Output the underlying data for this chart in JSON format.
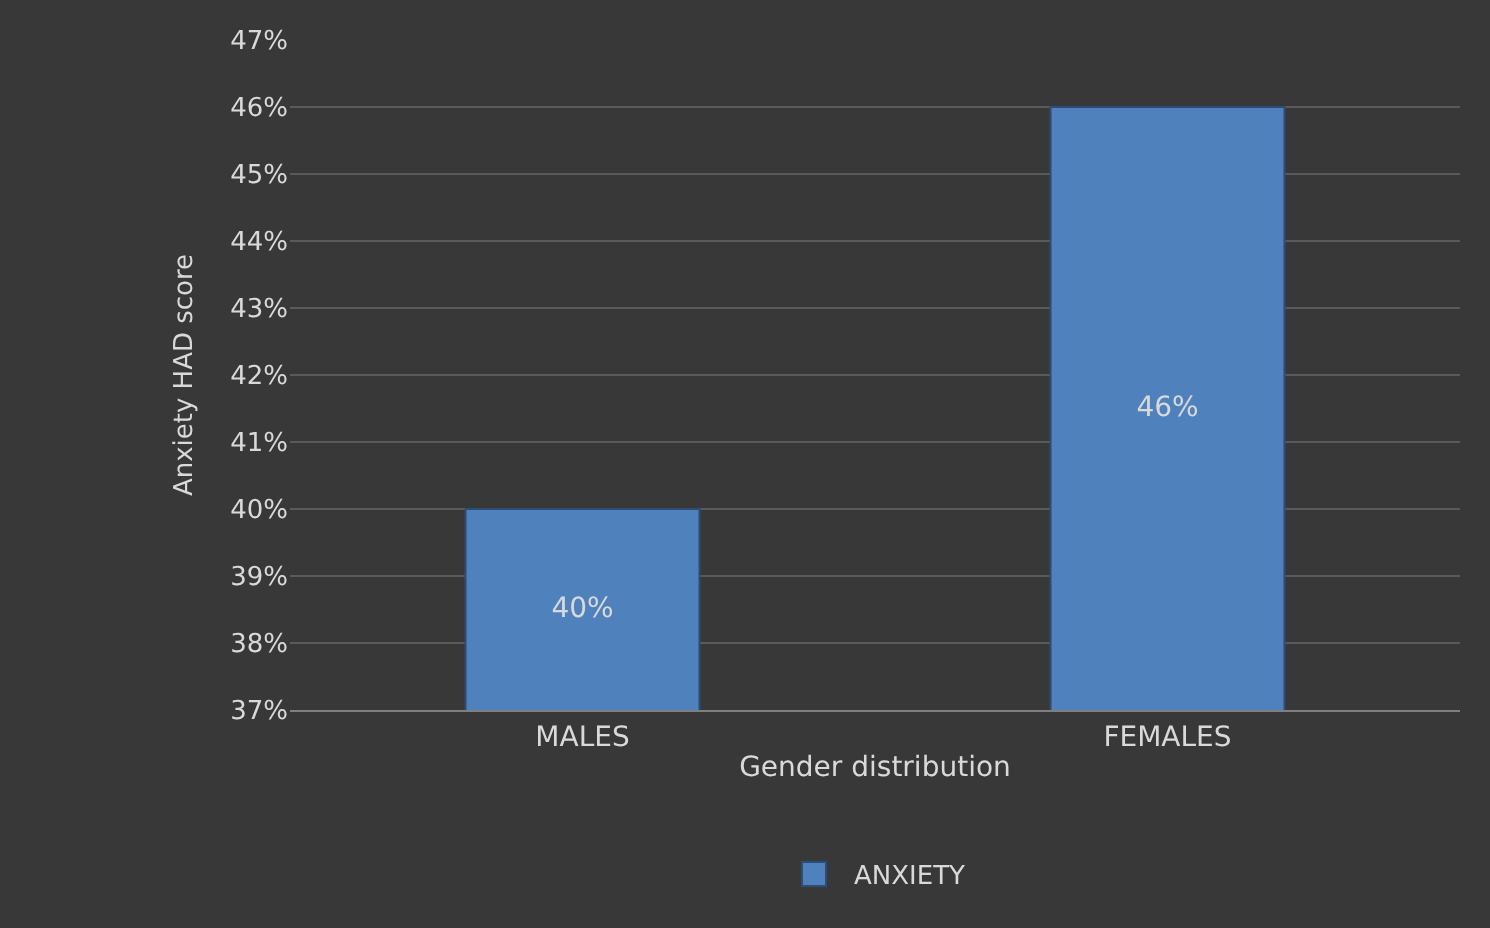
{
  "chart_data": {
    "type": "bar",
    "categories": [
      "MALES",
      "FEMALES"
    ],
    "series": [
      {
        "name": "ANXIETY",
        "color": "#4f81bd",
        "values": [
          40,
          46
        ],
        "value_labels": [
          "40%",
          "46%"
        ]
      }
    ],
    "xlabel": "Gender distribution",
    "ylabel": "Anxiety HAD score",
    "ylim": [
      37,
      47
    ],
    "yticks": [
      {
        "value": 37,
        "label": "37%"
      },
      {
        "value": 38,
        "label": "38%"
      },
      {
        "value": 39,
        "label": "39%"
      },
      {
        "value": 40,
        "label": "40%"
      },
      {
        "value": 41,
        "label": "41%"
      },
      {
        "value": 42,
        "label": "42%"
      },
      {
        "value": 43,
        "label": "43%"
      },
      {
        "value": 44,
        "label": "44%"
      },
      {
        "value": 45,
        "label": "45%"
      },
      {
        "value": 46,
        "label": "46%"
      },
      {
        "value": 47,
        "label": "47%"
      }
    ],
    "grid": "y",
    "legend": "bottom"
  }
}
